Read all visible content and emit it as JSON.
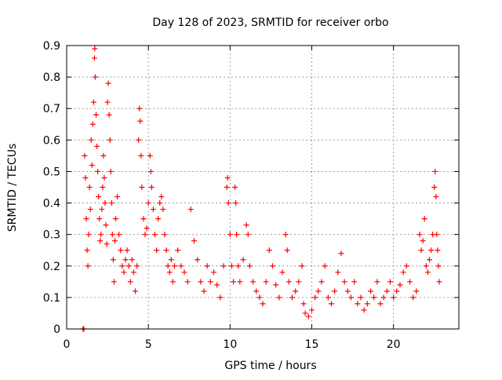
{
  "chart_data": {
    "type": "scatter",
    "title": "Day 128 of 2023, SRMTID for receiver orbo",
    "xlabel": "GPS time / hours",
    "ylabel": "SRMTID / TECUs",
    "xlim": [
      0,
      24
    ],
    "ylim": [
      0,
      0.9
    ],
    "x_ticks": [
      {
        "value": 0,
        "label": "0"
      },
      {
        "value": 5,
        "label": "5"
      },
      {
        "value": 10,
        "label": "10"
      },
      {
        "value": 15,
        "label": "15"
      },
      {
        "value": 20,
        "label": "20"
      }
    ],
    "y_ticks": [
      {
        "value": 0,
        "label": "0"
      },
      {
        "value": 0.1,
        "label": "0.1"
      },
      {
        "value": 0.2,
        "label": "0.2"
      },
      {
        "value": 0.3,
        "label": "0.3"
      },
      {
        "value": 0.4,
        "label": "0.4"
      },
      {
        "value": 0.5,
        "label": "0.5"
      },
      {
        "value": 0.6,
        "label": "0.6"
      },
      {
        "value": 0.7,
        "label": "0.7"
      },
      {
        "value": 0.8,
        "label": "0.8"
      },
      {
        "value": 0.9,
        "label": "0.9"
      }
    ],
    "grid": true,
    "marker": "plus",
    "color": "#ff0000",
    "series": [
      {
        "name": "SRMTID",
        "points": [
          [
            1.0,
            0.0
          ],
          [
            1.05,
            0.0
          ],
          [
            1.1,
            0.55
          ],
          [
            1.15,
            0.48
          ],
          [
            1.2,
            0.35
          ],
          [
            1.25,
            0.25
          ],
          [
            1.3,
            0.2
          ],
          [
            1.35,
            0.3
          ],
          [
            1.4,
            0.45
          ],
          [
            1.45,
            0.38
          ],
          [
            1.5,
            0.6
          ],
          [
            1.55,
            0.52
          ],
          [
            1.6,
            0.65
          ],
          [
            1.65,
            0.72
          ],
          [
            1.7,
            0.86
          ],
          [
            1.72,
            0.89
          ],
          [
            1.75,
            0.8
          ],
          [
            1.8,
            0.68
          ],
          [
            1.85,
            0.58
          ],
          [
            1.9,
            0.5
          ],
          [
            1.95,
            0.42
          ],
          [
            2.0,
            0.35
          ],
          [
            2.05,
            0.28
          ],
          [
            2.1,
            0.3
          ],
          [
            2.15,
            0.38
          ],
          [
            2.2,
            0.45
          ],
          [
            2.25,
            0.55
          ],
          [
            2.3,
            0.48
          ],
          [
            2.35,
            0.4
          ],
          [
            2.4,
            0.33
          ],
          [
            2.45,
            0.27
          ],
          [
            2.5,
            0.72
          ],
          [
            2.55,
            0.78
          ],
          [
            2.6,
            0.68
          ],
          [
            2.65,
            0.6
          ],
          [
            2.7,
            0.5
          ],
          [
            2.75,
            0.4
          ],
          [
            2.8,
            0.3
          ],
          [
            2.85,
            0.22
          ],
          [
            2.9,
            0.15
          ],
          [
            2.95,
            0.28
          ],
          [
            3.0,
            0.35
          ],
          [
            3.1,
            0.42
          ],
          [
            3.2,
            0.3
          ],
          [
            3.3,
            0.25
          ],
          [
            3.4,
            0.2
          ],
          [
            3.5,
            0.18
          ],
          [
            3.6,
            0.22
          ],
          [
            3.7,
            0.25
          ],
          [
            3.8,
            0.2
          ],
          [
            3.9,
            0.15
          ],
          [
            4.0,
            0.22
          ],
          [
            4.1,
            0.18
          ],
          [
            4.2,
            0.12
          ],
          [
            4.3,
            0.2
          ],
          [
            4.4,
            0.6
          ],
          [
            4.45,
            0.7
          ],
          [
            4.5,
            0.66
          ],
          [
            4.55,
            0.55
          ],
          [
            4.6,
            0.45
          ],
          [
            4.7,
            0.35
          ],
          [
            4.8,
            0.3
          ],
          [
            4.9,
            0.32
          ],
          [
            5.0,
            0.4
          ],
          [
            5.1,
            0.55
          ],
          [
            5.15,
            0.5
          ],
          [
            5.2,
            0.45
          ],
          [
            5.3,
            0.38
          ],
          [
            5.4,
            0.3
          ],
          [
            5.5,
            0.25
          ],
          [
            5.6,
            0.35
          ],
          [
            5.7,
            0.4
          ],
          [
            5.8,
            0.42
          ],
          [
            5.9,
            0.38
          ],
          [
            6.0,
            0.3
          ],
          [
            6.1,
            0.25
          ],
          [
            6.2,
            0.2
          ],
          [
            6.3,
            0.18
          ],
          [
            6.4,
            0.22
          ],
          [
            6.5,
            0.15
          ],
          [
            6.6,
            0.2
          ],
          [
            6.8,
            0.25
          ],
          [
            7.0,
            0.2
          ],
          [
            7.2,
            0.18
          ],
          [
            7.4,
            0.15
          ],
          [
            7.6,
            0.38
          ],
          [
            7.8,
            0.28
          ],
          [
            8.0,
            0.22
          ],
          [
            8.2,
            0.15
          ],
          [
            8.4,
            0.12
          ],
          [
            8.6,
            0.2
          ],
          [
            8.8,
            0.15
          ],
          [
            9.0,
            0.18
          ],
          [
            9.2,
            0.14
          ],
          [
            9.4,
            0.1
          ],
          [
            9.6,
            0.2
          ],
          [
            9.8,
            0.45
          ],
          [
            9.85,
            0.48
          ],
          [
            9.9,
            0.4
          ],
          [
            10.0,
            0.3
          ],
          [
            10.1,
            0.2
          ],
          [
            10.2,
            0.15
          ],
          [
            10.3,
            0.45
          ],
          [
            10.35,
            0.4
          ],
          [
            10.4,
            0.3
          ],
          [
            10.5,
            0.2
          ],
          [
            10.6,
            0.15
          ],
          [
            10.8,
            0.22
          ],
          [
            11.0,
            0.33
          ],
          [
            11.1,
            0.3
          ],
          [
            11.2,
            0.2
          ],
          [
            11.4,
            0.15
          ],
          [
            11.6,
            0.12
          ],
          [
            11.8,
            0.1
          ],
          [
            12.0,
            0.08
          ],
          [
            12.2,
            0.15
          ],
          [
            12.4,
            0.25
          ],
          [
            12.6,
            0.2
          ],
          [
            12.8,
            0.14
          ],
          [
            13.0,
            0.1
          ],
          [
            13.2,
            0.18
          ],
          [
            13.4,
            0.3
          ],
          [
            13.5,
            0.25
          ],
          [
            13.6,
            0.15
          ],
          [
            13.8,
            0.1
          ],
          [
            14.0,
            0.12
          ],
          [
            14.2,
            0.15
          ],
          [
            14.4,
            0.2
          ],
          [
            14.5,
            0.08
          ],
          [
            14.6,
            0.05
          ],
          [
            14.8,
            0.04
          ],
          [
            15.0,
            0.06
          ],
          [
            15.2,
            0.1
          ],
          [
            15.4,
            0.12
          ],
          [
            15.6,
            0.15
          ],
          [
            15.8,
            0.2
          ],
          [
            16.0,
            0.1
          ],
          [
            16.2,
            0.08
          ],
          [
            16.4,
            0.12
          ],
          [
            16.6,
            0.18
          ],
          [
            16.8,
            0.24
          ],
          [
            17.0,
            0.15
          ],
          [
            17.2,
            0.12
          ],
          [
            17.4,
            0.1
          ],
          [
            17.6,
            0.15
          ],
          [
            17.8,
            0.08
          ],
          [
            18.0,
            0.1
          ],
          [
            18.2,
            0.06
          ],
          [
            18.4,
            0.08
          ],
          [
            18.6,
            0.12
          ],
          [
            18.8,
            0.1
          ],
          [
            19.0,
            0.15
          ],
          [
            19.2,
            0.08
          ],
          [
            19.4,
            0.1
          ],
          [
            19.6,
            0.12
          ],
          [
            19.8,
            0.15
          ],
          [
            20.0,
            0.1
          ],
          [
            20.2,
            0.12
          ],
          [
            20.4,
            0.14
          ],
          [
            20.6,
            0.18
          ],
          [
            20.8,
            0.2
          ],
          [
            21.0,
            0.15
          ],
          [
            21.2,
            0.1
          ],
          [
            21.4,
            0.12
          ],
          [
            21.6,
            0.3
          ],
          [
            21.7,
            0.25
          ],
          [
            21.8,
            0.28
          ],
          [
            21.9,
            0.35
          ],
          [
            22.0,
            0.2
          ],
          [
            22.1,
            0.18
          ],
          [
            22.2,
            0.22
          ],
          [
            22.3,
            0.25
          ],
          [
            22.4,
            0.3
          ],
          [
            22.5,
            0.45
          ],
          [
            22.55,
            0.5
          ],
          [
            22.6,
            0.42
          ],
          [
            22.65,
            0.3
          ],
          [
            22.7,
            0.25
          ],
          [
            22.75,
            0.2
          ],
          [
            22.8,
            0.15
          ]
        ]
      }
    ]
  }
}
